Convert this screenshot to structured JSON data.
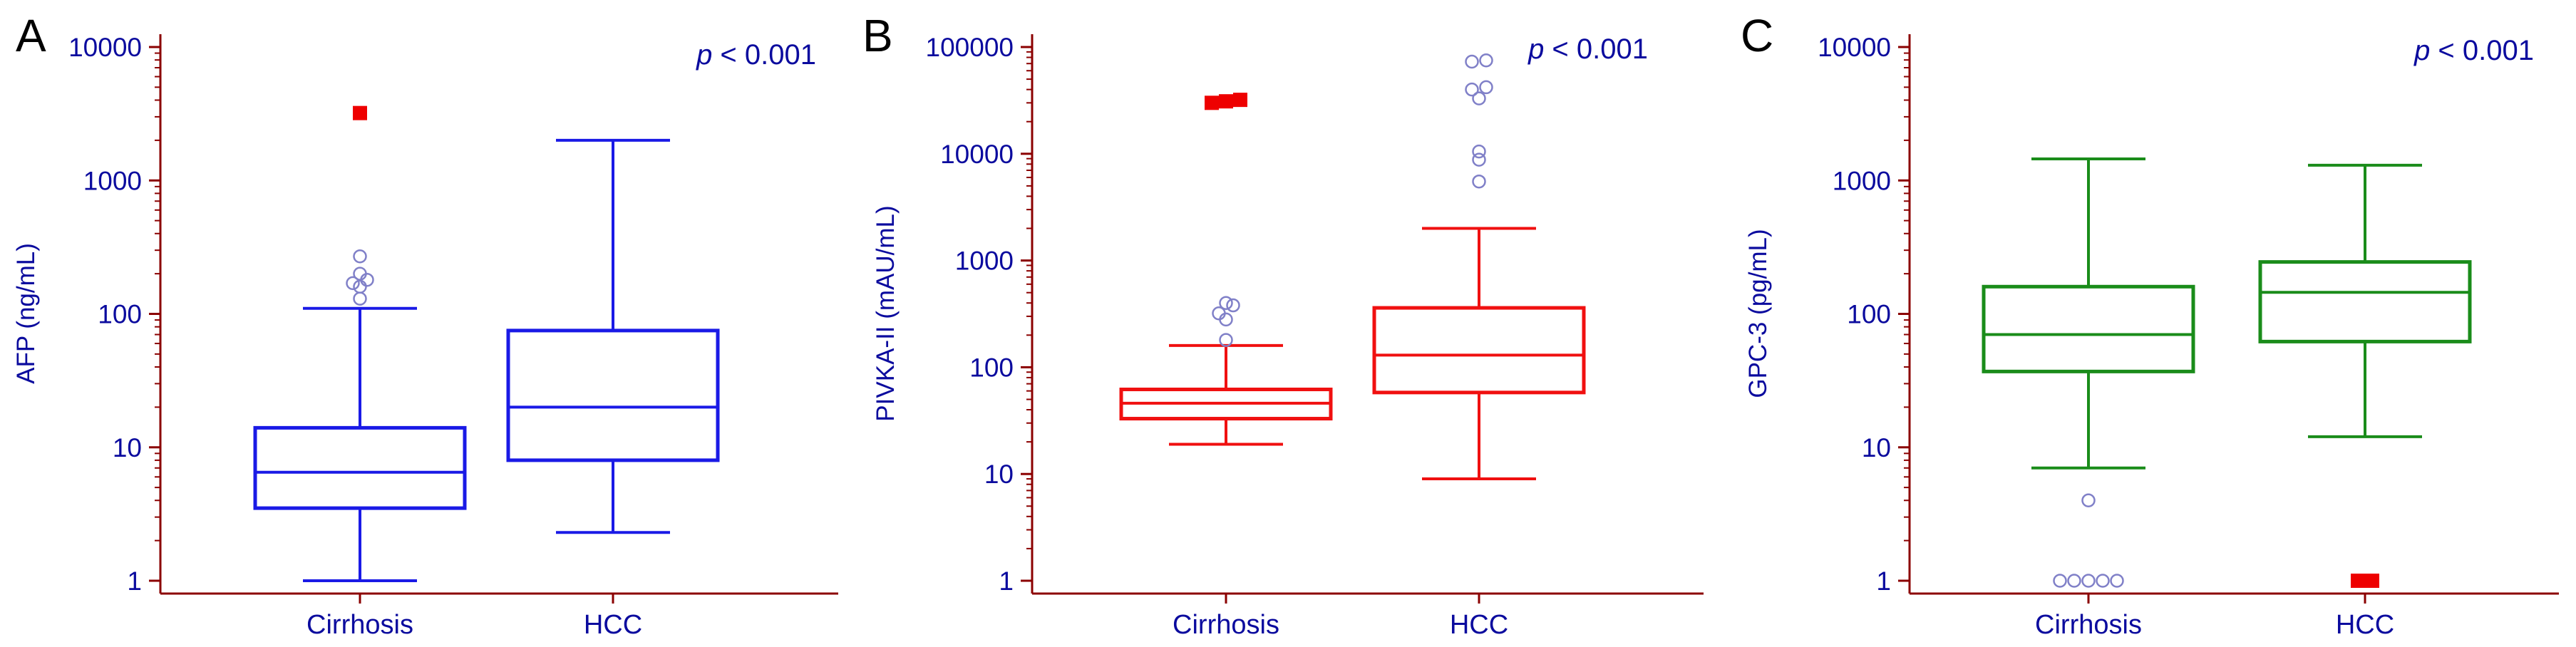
{
  "chart_data": [
    {
      "type": "box",
      "panel": "A",
      "ylabel": "AFP (ng/mL)",
      "yscale": "log",
      "ylim": [
        1,
        10000
      ],
      "yticks": [
        "1",
        "10",
        "100",
        "1000",
        "10000"
      ],
      "categories": [
        "Cirrhosis",
        "HCC"
      ],
      "annotation_italic": "p",
      "annotation_rest": " < 0.001",
      "color": "#1a1ae6",
      "boxes": [
        {
          "category": "Cirrhosis",
          "whisker_low": 1,
          "q1": 3.5,
          "median": 6.5,
          "q3": 14,
          "whisker_high": 110,
          "outliers_open": [
            130,
            160,
            170,
            180,
            200,
            270
          ],
          "outliers_filled": [
            3200
          ]
        },
        {
          "category": "HCC",
          "whisker_low": 2.3,
          "q1": 8,
          "median": 20,
          "q3": 75,
          "whisker_high": 2000,
          "outliers_open": [],
          "outliers_filled": []
        }
      ]
    },
    {
      "type": "box",
      "panel": "B",
      "ylabel": "PIVKA-II (mAU/mL)",
      "yscale": "log",
      "ylim": [
        1,
        100000
      ],
      "yticks": [
        "1",
        "10",
        "100",
        "1000",
        "10000",
        "100000"
      ],
      "categories": [
        "Cirrhosis",
        "HCC"
      ],
      "annotation_italic": "p",
      "annotation_rest": " < 0.001",
      "color": "#f01010",
      "boxes": [
        {
          "category": "Cirrhosis",
          "whisker_low": 19,
          "q1": 33,
          "median": 46,
          "q3": 62,
          "whisker_high": 160,
          "outliers_open": [
            180,
            280,
            320,
            380,
            400
          ],
          "outliers_filled": [
            30000,
            31000,
            32000
          ]
        },
        {
          "category": "HCC",
          "whisker_low": 9,
          "q1": 58,
          "median": 130,
          "q3": 360,
          "whisker_high": 2000,
          "outliers_open": [
            5500,
            8800,
            10500,
            33000,
            40000,
            42000,
            73000,
            75000
          ],
          "outliers_filled": []
        }
      ]
    },
    {
      "type": "box",
      "panel": "C",
      "ylabel": "GPC-3 (pg/mL)",
      "yscale": "log",
      "ylim": [
        1,
        10000
      ],
      "yticks": [
        "1",
        "10",
        "100",
        "1000",
        "10000"
      ],
      "categories": [
        "Cirrhosis",
        "HCC"
      ],
      "annotation_italic": "p",
      "annotation_rest": " < 0.001",
      "color": "#1a8c1a",
      "boxes": [
        {
          "category": "Cirrhosis",
          "whisker_low": 7,
          "q1": 37,
          "median": 70,
          "q3": 160,
          "whisker_high": 1450,
          "outliers_open": [
            1,
            1,
            1,
            1,
            1,
            4
          ],
          "outliers_filled": []
        },
        {
          "category": "HCC",
          "whisker_low": 12,
          "q1": 62,
          "median": 145,
          "q3": 245,
          "whisker_high": 1300,
          "outliers_open": [],
          "outliers_filled": [
            1,
            1
          ]
        }
      ]
    }
  ]
}
